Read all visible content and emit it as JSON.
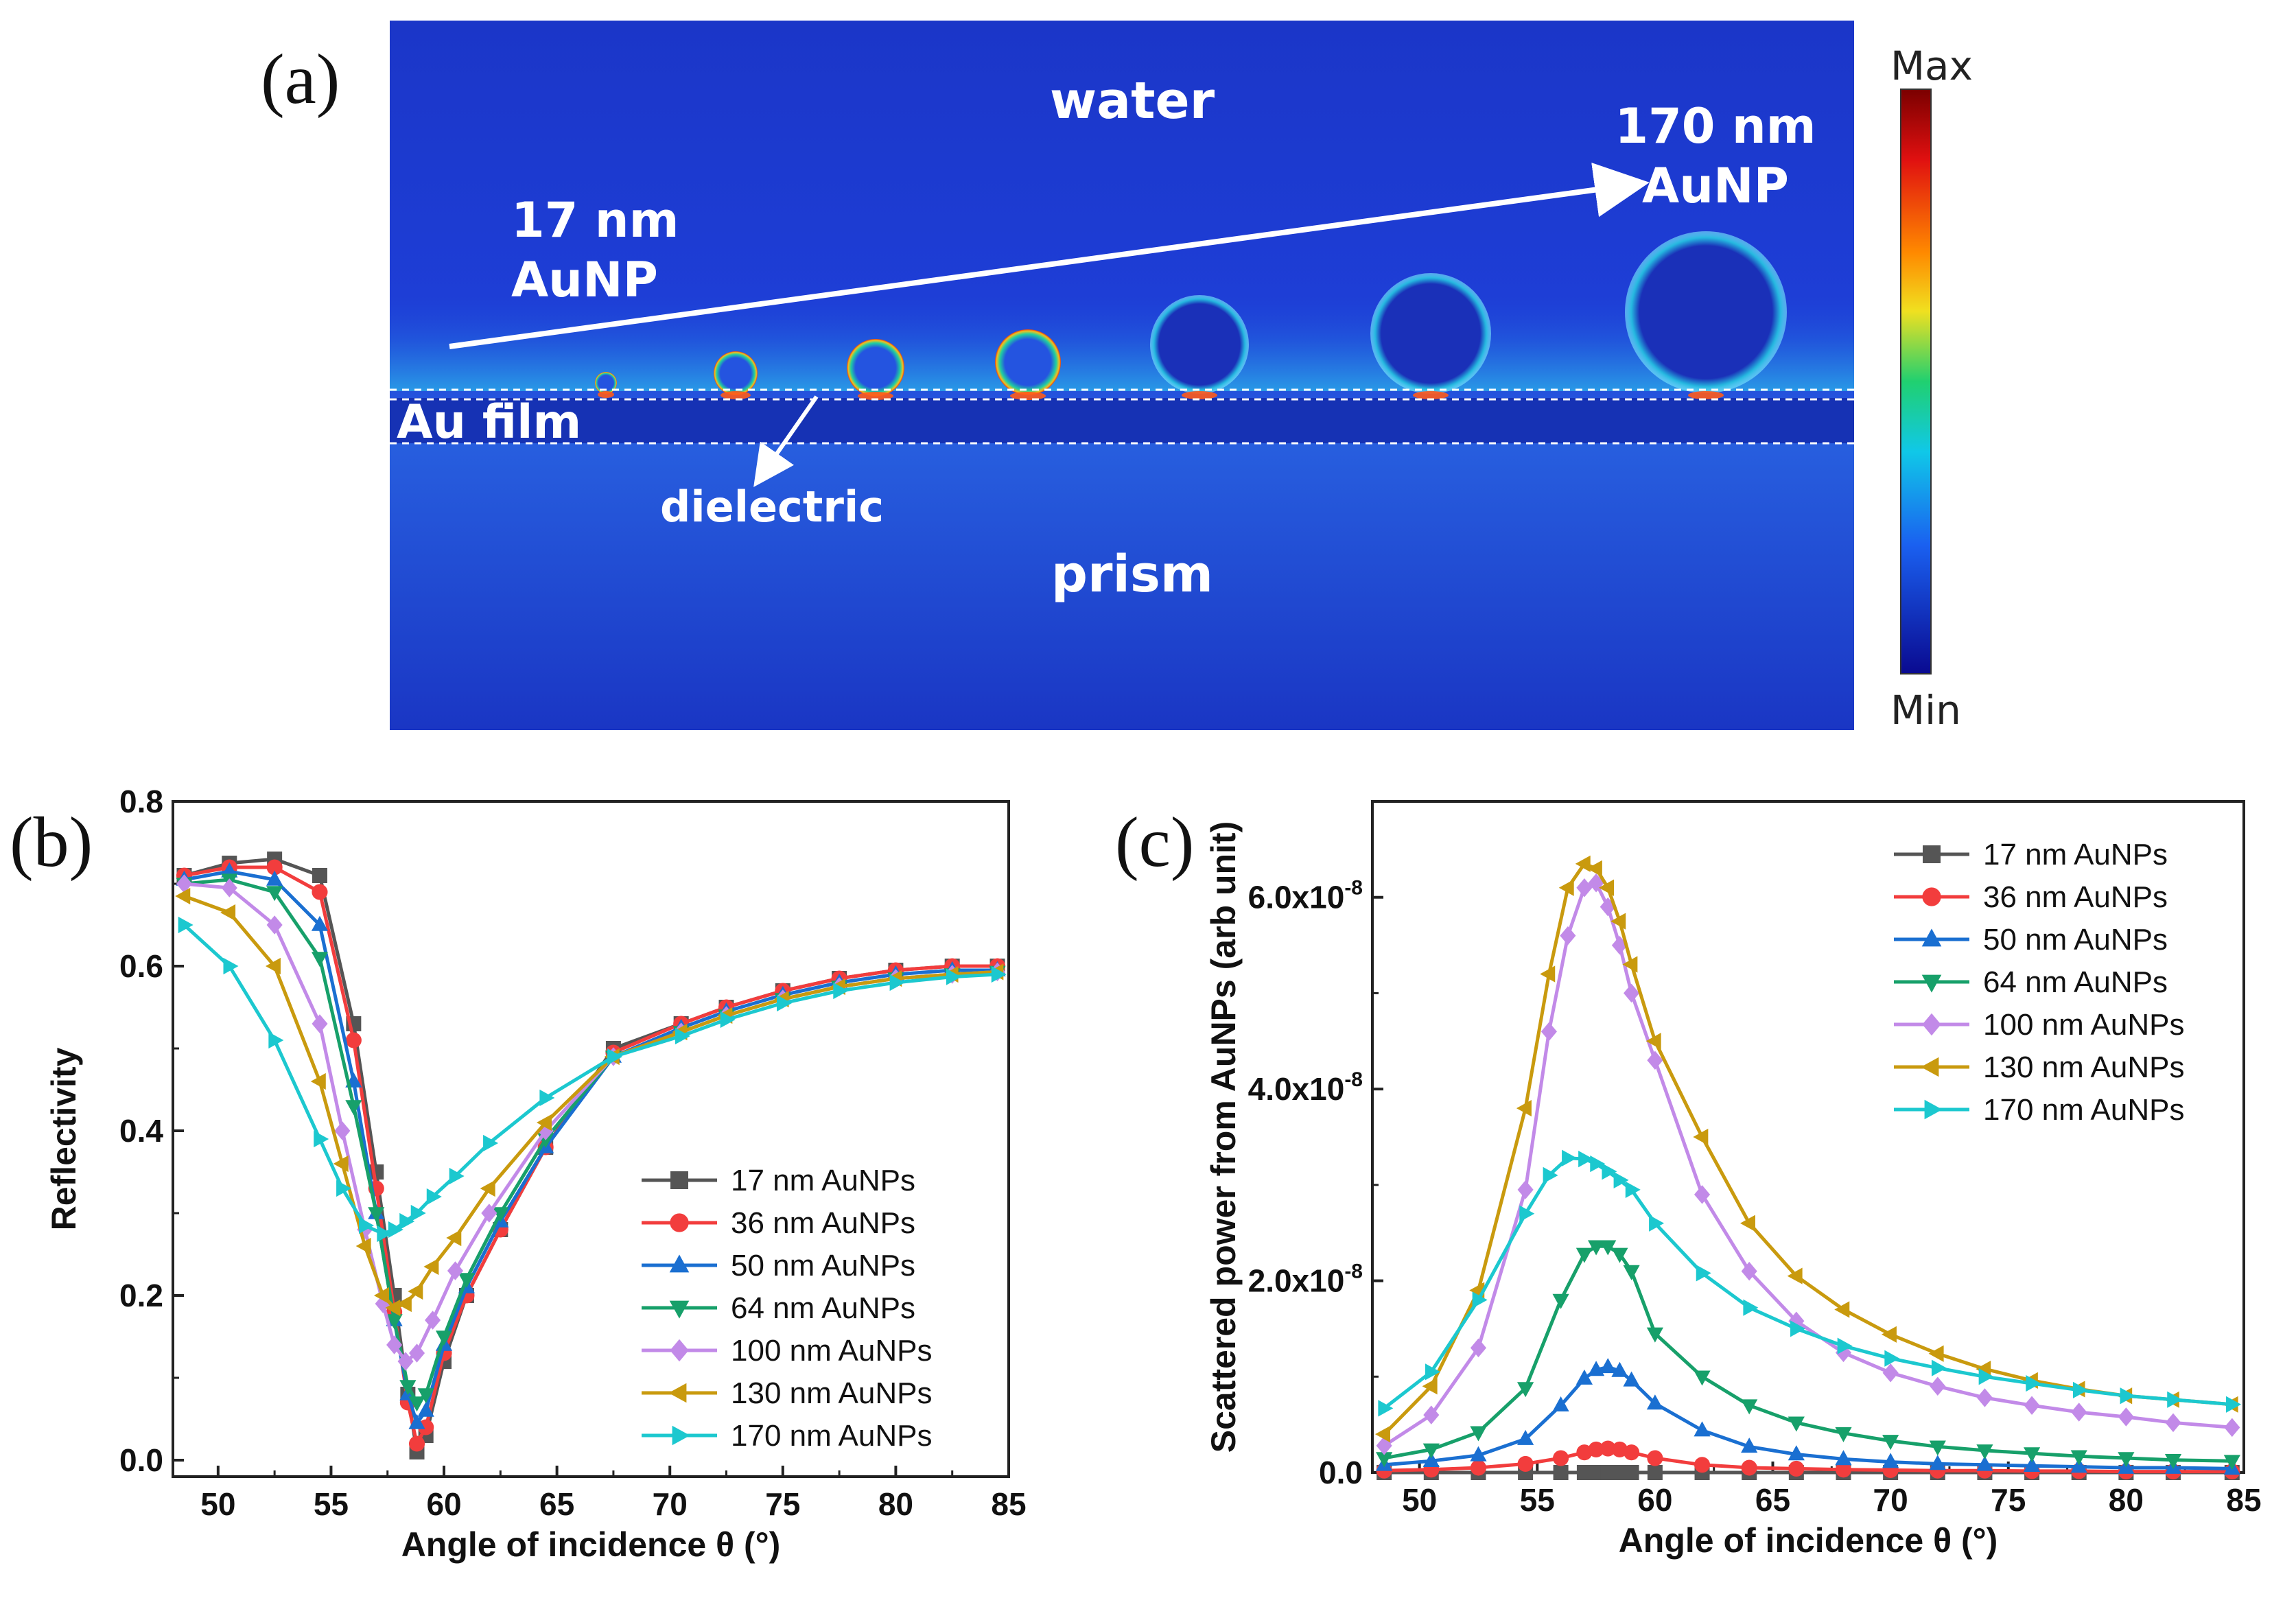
{
  "panel_a": {
    "tag": "(a)",
    "label_water": "water",
    "label_prism": "prism",
    "label_au_film": "Au film",
    "label_dielectric": "dielectric",
    "label_small_line1": "17 nm",
    "label_small_line2": "AuNP",
    "label_large_line1": "170 nm",
    "label_large_line2": "AuNP",
    "colorbar_max": "Max",
    "colorbar_min": "Min",
    "particle_sizes_nm": [
      17,
      36,
      50,
      64,
      100,
      130,
      170
    ]
  },
  "colors": {
    "17 nm AuNPs": "#555555",
    "36 nm AuNPs": "#f23d3d",
    "50 nm AuNPs": "#1a6fd1",
    "64 nm AuNPs": "#17a06a",
    "100 nm AuNPs": "#c28ae8",
    "130 nm AuNPs": "#c99a0e",
    "170 nm AuNPs": "#1cc8cf"
  },
  "chart_data": [
    {
      "type": "line",
      "panel": "(b)",
      "xlabel": "Angle of incidence  θ (°)",
      "ylabel": "Reflectivity",
      "xlim": [
        48,
        85
      ],
      "ylim": [
        -0.02,
        0.8
      ],
      "xticks": [
        50,
        55,
        60,
        65,
        70,
        75,
        80,
        85
      ],
      "yticks": [
        0.0,
        0.2,
        0.4,
        0.6,
        0.8
      ],
      "ytick_labels": [
        "0.0",
        "0.2",
        "0.4",
        "0.6",
        "0.8"
      ],
      "legend_position": "lower-right",
      "series": [
        {
          "name": "17 nm AuNPs",
          "marker": "square",
          "x": [
            48.5,
            50.5,
            52.5,
            54.5,
            56.0,
            57.0,
            57.8,
            58.4,
            58.8,
            59.2,
            60.0,
            61.0,
            62.5,
            64.5,
            67.5,
            70.5,
            72.5,
            75.0,
            77.5,
            80.0,
            82.5,
            84.5
          ],
          "y": [
            0.71,
            0.725,
            0.73,
            0.71,
            0.53,
            0.35,
            0.2,
            0.08,
            0.01,
            0.03,
            0.12,
            0.2,
            0.28,
            0.38,
            0.5,
            0.53,
            0.55,
            0.57,
            0.585,
            0.595,
            0.6,
            0.6
          ]
        },
        {
          "name": "36 nm AuNPs",
          "marker": "circle",
          "x": [
            48.5,
            50.5,
            52.5,
            54.5,
            56.0,
            57.0,
            57.8,
            58.4,
            58.8,
            59.2,
            60.0,
            61.0,
            62.5,
            64.5,
            67.5,
            70.5,
            72.5,
            75.0,
            77.5,
            80.0,
            82.5,
            84.5
          ],
          "y": [
            0.71,
            0.72,
            0.72,
            0.69,
            0.51,
            0.33,
            0.18,
            0.07,
            0.02,
            0.04,
            0.13,
            0.2,
            0.28,
            0.38,
            0.495,
            0.53,
            0.55,
            0.57,
            0.585,
            0.595,
            0.6,
            0.6
          ]
        },
        {
          "name": "50 nm AuNPs",
          "marker": "triangle-up",
          "x": [
            48.5,
            50.5,
            52.5,
            54.5,
            56.0,
            57.0,
            57.8,
            58.4,
            58.8,
            59.2,
            60.0,
            61.0,
            62.5,
            64.5,
            67.5,
            70.5,
            72.5,
            75.0,
            77.5,
            80.0,
            82.5,
            84.5
          ],
          "y": [
            0.705,
            0.715,
            0.705,
            0.65,
            0.46,
            0.3,
            0.17,
            0.08,
            0.045,
            0.06,
            0.14,
            0.21,
            0.29,
            0.38,
            0.49,
            0.525,
            0.545,
            0.565,
            0.58,
            0.59,
            0.595,
            0.595
          ]
        },
        {
          "name": "64 nm AuNPs",
          "marker": "triangle-down",
          "x": [
            48.5,
            50.5,
            52.5,
            54.5,
            56.0,
            57.0,
            57.8,
            58.4,
            58.8,
            59.2,
            60.0,
            61.0,
            62.5,
            64.5,
            67.5,
            70.5,
            72.5,
            75.0,
            77.5,
            80.0,
            82.5,
            84.5
          ],
          "y": [
            0.7,
            0.705,
            0.69,
            0.61,
            0.43,
            0.3,
            0.17,
            0.09,
            0.07,
            0.08,
            0.15,
            0.22,
            0.3,
            0.39,
            0.49,
            0.52,
            0.54,
            0.56,
            0.575,
            0.585,
            0.59,
            0.593
          ]
        },
        {
          "name": "100 nm AuNPs",
          "marker": "diamond",
          "x": [
            48.5,
            50.5,
            52.5,
            54.5,
            55.5,
            56.5,
            57.3,
            57.8,
            58.3,
            58.8,
            59.5,
            60.5,
            62.0,
            64.5,
            67.5,
            70.5,
            72.5,
            75.0,
            77.5,
            80.0,
            82.5,
            84.5
          ],
          "y": [
            0.7,
            0.695,
            0.65,
            0.53,
            0.4,
            0.28,
            0.19,
            0.14,
            0.12,
            0.13,
            0.17,
            0.23,
            0.3,
            0.4,
            0.49,
            0.52,
            0.54,
            0.56,
            0.575,
            0.585,
            0.59,
            0.593
          ]
        },
        {
          "name": "130 nm AuNPs",
          "marker": "triangle-left",
          "x": [
            48.5,
            50.5,
            52.5,
            54.5,
            55.5,
            56.5,
            57.3,
            57.8,
            58.3,
            58.8,
            59.5,
            60.5,
            62.0,
            64.5,
            67.5,
            70.5,
            72.5,
            75.0,
            77.5,
            80.0,
            82.5,
            84.5
          ],
          "y": [
            0.685,
            0.665,
            0.6,
            0.46,
            0.36,
            0.26,
            0.2,
            0.185,
            0.19,
            0.205,
            0.235,
            0.27,
            0.33,
            0.41,
            0.49,
            0.52,
            0.54,
            0.56,
            0.575,
            0.585,
            0.59,
            0.593
          ]
        },
        {
          "name": "170 nm AuNPs",
          "marker": "triangle-right",
          "x": [
            48.5,
            50.5,
            52.5,
            54.5,
            55.5,
            56.5,
            57.3,
            57.8,
            58.3,
            58.8,
            59.5,
            60.5,
            62.0,
            64.5,
            67.5,
            70.5,
            72.5,
            75.0,
            77.5,
            80.0,
            82.5,
            84.5
          ],
          "y": [
            0.65,
            0.6,
            0.51,
            0.39,
            0.33,
            0.285,
            0.275,
            0.28,
            0.29,
            0.3,
            0.32,
            0.345,
            0.385,
            0.44,
            0.49,
            0.515,
            0.535,
            0.555,
            0.57,
            0.58,
            0.587,
            0.59
          ]
        }
      ]
    },
    {
      "type": "line",
      "panel": "(c)",
      "xlabel": "Angle of incidence  θ (°)",
      "ylabel": "Scattered power from AuNPs (arb unit)",
      "xlim": [
        48,
        85
      ],
      "ylim": [
        0,
        7e-08
      ],
      "xticks": [
        50,
        55,
        60,
        65,
        70,
        75,
        80,
        85
      ],
      "yticks": [
        0,
        2e-08,
        4e-08,
        6e-08
      ],
      "ytick_mantissas": [
        "0.0",
        "2.0x10",
        "4.0x10",
        "6.0x10"
      ],
      "ytick_exponent": "-8",
      "legend_position": "upper-right",
      "series": [
        {
          "name": "17 nm AuNPs",
          "marker": "square",
          "x": [
            48.5,
            50.5,
            52.5,
            54.5,
            56.0,
            57.0,
            57.5,
            58.0,
            58.5,
            59.0,
            60.0,
            62.0,
            64.0,
            66.0,
            68.0,
            70.0,
            72.0,
            74.0,
            76.0,
            78.0,
            80.0,
            82.0,
            84.5
          ],
          "y": [
            0,
            0,
            0,
            0,
            0,
            0,
            0,
            0,
            0,
            0,
            0,
            0,
            0,
            0,
            0,
            0,
            0,
            0,
            0,
            0,
            0,
            0,
            0
          ]
        },
        {
          "name": "36 nm AuNPs",
          "marker": "circle",
          "x": [
            48.5,
            50.5,
            52.5,
            54.5,
            56.0,
            57.0,
            57.5,
            58.0,
            58.5,
            59.0,
            60.0,
            62.0,
            64.0,
            66.0,
            68.0,
            70.0,
            72.0,
            74.0,
            76.0,
            78.0,
            80.0,
            82.0,
            84.5
          ],
          "y": [
            2e-10,
            3e-10,
            5e-10,
            9e-10,
            1.5e-09,
            2.1e-09,
            2.4e-09,
            2.5e-09,
            2.4e-09,
            2.1e-09,
            1.5e-09,
            8e-10,
            5e-10,
            4e-10,
            3e-10,
            2.5e-10,
            2e-10,
            2e-10,
            1.5e-10,
            1.5e-10,
            1e-10,
            1e-10,
            1e-10
          ]
        },
        {
          "name": "50 nm AuNPs",
          "marker": "triangle-up",
          "x": [
            48.5,
            50.5,
            52.5,
            54.5,
            56.0,
            57.0,
            57.5,
            58.0,
            58.5,
            59.0,
            60.0,
            62.0,
            64.0,
            66.0,
            68.0,
            70.0,
            72.0,
            74.0,
            76.0,
            78.0,
            80.0,
            82.0,
            84.5
          ],
          "y": [
            8e-10,
            1.2e-09,
            1.8e-09,
            3.5e-09,
            7e-09,
            9.8e-09,
            1.07e-08,
            1.1e-08,
            1.06e-08,
            9.6e-09,
            7.2e-09,
            4.4e-09,
            2.7e-09,
            1.9e-09,
            1.4e-09,
            1.1e-09,
            9e-10,
            8e-10,
            7e-10,
            6e-10,
            5e-10,
            5e-10,
            4e-10
          ]
        },
        {
          "name": "64 nm AuNPs",
          "marker": "triangle-down",
          "x": [
            48.5,
            50.5,
            52.5,
            54.5,
            56.0,
            57.0,
            57.5,
            58.0,
            58.5,
            59.0,
            60.0,
            62.0,
            64.0,
            66.0,
            68.0,
            70.0,
            72.0,
            74.0,
            76.0,
            78.0,
            80.0,
            82.0,
            84.5
          ],
          "y": [
            1.5e-09,
            2.4e-09,
            4.2e-09,
            8.8e-09,
            1.8e-08,
            2.28e-08,
            2.36e-08,
            2.36e-08,
            2.28e-08,
            2.1e-08,
            1.45e-08,
            1e-08,
            7e-09,
            5.2e-09,
            4.1e-09,
            3.3e-09,
            2.7e-09,
            2.3e-09,
            2e-09,
            1.7e-09,
            1.5e-09,
            1.3e-09,
            1.2e-09
          ]
        },
        {
          "name": "100 nm AuNPs",
          "marker": "diamond",
          "x": [
            48.5,
            50.5,
            52.5,
            54.5,
            55.5,
            56.3,
            57.0,
            57.5,
            58.0,
            58.5,
            59.0,
            60.0,
            62.0,
            64.0,
            66.0,
            68.0,
            70.0,
            72.0,
            74.0,
            76.0,
            78.0,
            80.0,
            82.0,
            84.5
          ],
          "y": [
            2.8e-09,
            6e-09,
            1.3e-08,
            2.95e-08,
            4.6e-08,
            5.6e-08,
            6.1e-08,
            6.15e-08,
            5.9e-08,
            5.5e-08,
            5e-08,
            4.3e-08,
            2.9e-08,
            2.1e-08,
            1.58e-08,
            1.25e-08,
            1.04e-08,
            9e-09,
            7.8e-09,
            7e-09,
            6.3e-09,
            5.8e-09,
            5.2e-09,
            4.7e-09
          ]
        },
        {
          "name": "130 nm AuNPs",
          "marker": "triangle-left",
          "x": [
            48.5,
            50.5,
            52.5,
            54.5,
            55.5,
            56.3,
            57.0,
            57.5,
            58.0,
            58.5,
            59.0,
            60.0,
            62.0,
            64.0,
            66.0,
            68.0,
            70.0,
            72.0,
            74.0,
            76.0,
            78.0,
            80.0,
            82.0,
            84.5
          ],
          "y": [
            4e-09,
            9e-09,
            1.9e-08,
            3.8e-08,
            5.2e-08,
            6.1e-08,
            6.35e-08,
            6.3e-08,
            6.1e-08,
            5.75e-08,
            5.3e-08,
            4.5e-08,
            3.5e-08,
            2.6e-08,
            2.05e-08,
            1.7e-08,
            1.44e-08,
            1.24e-08,
            1.08e-08,
            9.6e-09,
            8.7e-09,
            8e-09,
            7.6e-09,
            7.1e-09
          ]
        },
        {
          "name": "170 nm AuNPs",
          "marker": "triangle-right",
          "x": [
            48.5,
            50.5,
            52.5,
            54.5,
            55.5,
            56.3,
            57.0,
            57.5,
            58.0,
            58.5,
            59.0,
            60.0,
            62.0,
            64.0,
            66.0,
            68.0,
            70.0,
            72.0,
            74.0,
            76.0,
            78.0,
            80.0,
            82.0,
            84.5
          ],
          "y": [
            6.7e-09,
            1.05e-08,
            1.8e-08,
            2.7e-08,
            3.1e-08,
            3.28e-08,
            3.27e-08,
            3.22e-08,
            3.14e-08,
            3.05e-08,
            2.95e-08,
            2.6e-08,
            2.08e-08,
            1.72e-08,
            1.5e-08,
            1.32e-08,
            1.19e-08,
            1.09e-08,
            1e-08,
            9.3e-09,
            8.6e-09,
            8e-09,
            7.6e-09,
            7.1e-09
          ]
        }
      ]
    }
  ]
}
